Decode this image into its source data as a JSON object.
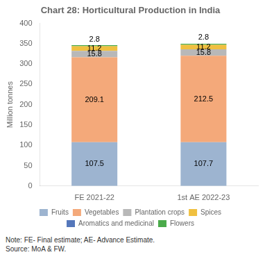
{
  "chart_data": {
    "type": "bar",
    "title": "Chart 28: Horticultural Production in India",
    "categories": [
      "FE 2021-22",
      "1st AE 2022-23"
    ],
    "series": [
      {
        "name": "Fruits",
        "color": "#9db4d0",
        "values": [
          107.5,
          107.7
        ],
        "data_labels": true
      },
      {
        "name": "Vegetables",
        "color": "#f4a97a",
        "values": [
          209.1,
          212.5
        ],
        "data_labels": true
      },
      {
        "name": "Plantation crops",
        "color": "#b8b8b8",
        "values": [
          15.8,
          15.8
        ],
        "data_labels": true
      },
      {
        "name": "Spices",
        "color": "#f0c040",
        "values": [
          11.2,
          11.2
        ],
        "data_labels": true
      },
      {
        "name": "Aromatics and medicinal",
        "color": "#5577bb",
        "values": [
          0.0,
          0.0
        ],
        "data_labels": false
      },
      {
        "name": "Flowers",
        "color": "#4aaa4a",
        "values": [
          2.8,
          2.8
        ],
        "data_labels": true
      }
    ],
    "stacked": true,
    "ylabel": "Million tonnes",
    "ylim": [
      0,
      400
    ],
    "yticks": [
      0,
      50,
      100,
      150,
      200,
      250,
      300,
      350,
      400
    ],
    "grid": false,
    "legend": "bottom",
    "annotations": [
      "Note: FE- Final estimate; AE- Advance Estimate.",
      "Source: MoA & FW."
    ]
  }
}
